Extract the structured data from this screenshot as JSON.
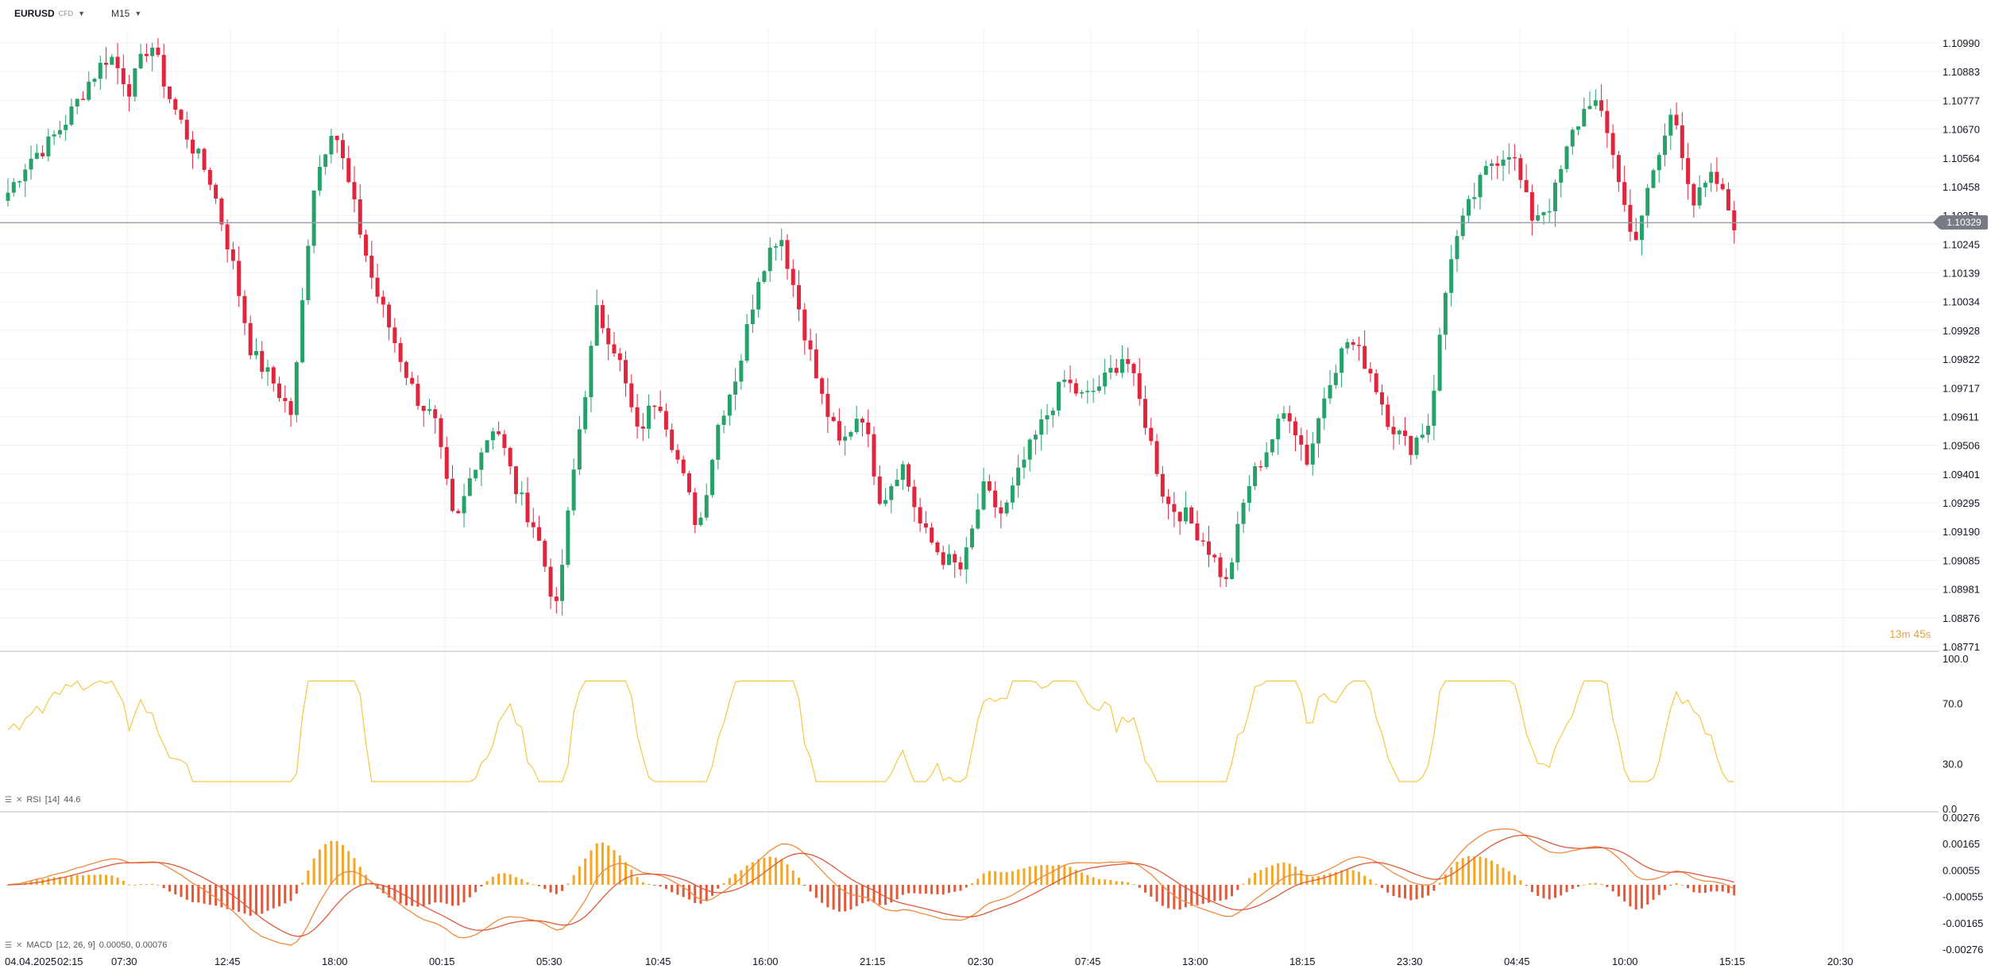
{
  "toolbar": {
    "symbol": "EURUSD",
    "symbol_sub": "CFD",
    "interval": "M15"
  },
  "price_axis": {
    "ticks": [
      "1.10990",
      "1.10883",
      "1.10777",
      "1.10670",
      "1.10564",
      "1.10458",
      "1.10351",
      "1.10245",
      "1.10139",
      "1.10034",
      "1.09928",
      "1.09822",
      "1.09717",
      "1.09611",
      "1.09506",
      "1.09401",
      "1.09295",
      "1.09190",
      "1.09085",
      "1.08981",
      "1.08876",
      "1.08771"
    ],
    "current_price": "1.10329"
  },
  "countdown": {
    "minutes": "13",
    "m": "m",
    "seconds": "45",
    "s": "s"
  },
  "time_axis": {
    "labels": [
      "04.04.2025",
      "02:15",
      "07:30",
      "12:45",
      "18:00",
      "00:15",
      "05:30",
      "10:45",
      "16:00",
      "21:15",
      "02:30",
      "07:45",
      "13:00",
      "18:15",
      "23:30",
      "04:45",
      "10:00",
      "15:15",
      "20:30"
    ]
  },
  "rsi": {
    "label": "RSI",
    "params": "[14]",
    "value": "44.6",
    "ticks": [
      "100.0",
      "70.0",
      "30.0",
      "0.0"
    ],
    "color": "#f5c842"
  },
  "macd": {
    "label": "MACD",
    "params": "[12, 26, 9]",
    "values": "0.00050, 0.00076",
    "ticks": [
      "0.00276",
      "0.00165",
      "0.00055",
      "-0.00055",
      "-0.00165",
      "-0.00276"
    ],
    "pos_color": "#f5a623",
    "neg_color": "#e05a3a"
  },
  "colors": {
    "bull": "#26a269",
    "bear": "#e0263c",
    "grid": "#f0f1f3",
    "price_line": "#9aa0ab"
  },
  "chart_data": {
    "type": "candlestick",
    "interval": "M15",
    "ylim": [
      1.08771,
      1.1099
    ],
    "close_path": [
      1.1044,
      1.1056,
      1.1062,
      1.1072,
      1.1085,
      1.1095,
      1.1082,
      1.11,
      1.1078,
      1.1062,
      1.1048,
      1.102,
      1.0985,
      1.0975,
      1.0962,
      1.1045,
      1.107,
      1.104,
      1.101,
      1.099,
      1.097,
      1.096,
      1.092,
      1.0945,
      1.096,
      1.0935,
      1.092,
      1.089,
      1.095,
      1.1,
      1.0985,
      1.0955,
      1.097,
      1.0945,
      1.092,
      1.096,
      1.098,
      1.1015,
      1.103,
      1.1,
      1.097,
      1.095,
      1.0965,
      1.093,
      1.0945,
      1.092,
      1.091,
      1.0905,
      1.0935,
      1.0925,
      1.0945,
      1.096,
      1.0975,
      1.0968,
      1.0975,
      1.0985,
      1.096,
      1.093,
      1.0925,
      1.0915,
      1.09,
      1.0935,
      1.095,
      1.0965,
      1.0945,
      1.0975,
      1.099,
      1.098,
      1.096,
      1.095,
      1.096,
      1.102,
      1.104,
      1.1055,
      1.106,
      1.1035,
      1.104,
      1.1065,
      1.108,
      1.106,
      1.1025,
      1.105,
      1.1075,
      1.104,
      1.105,
      1.1033
    ]
  }
}
